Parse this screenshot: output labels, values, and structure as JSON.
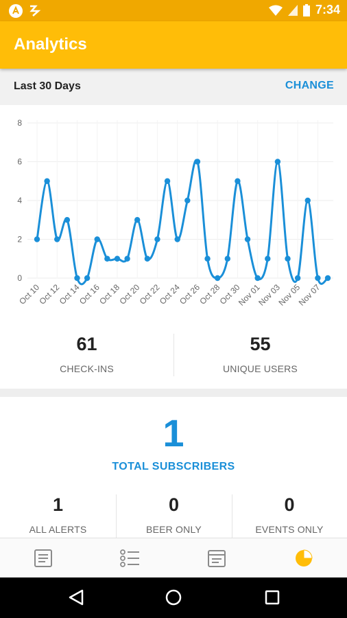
{
  "status_bar": {
    "time": "7:34",
    "icons": [
      "app-logo-icon",
      "notification-icon",
      "wifi-icon",
      "signal-icon",
      "battery-icon"
    ]
  },
  "app_bar": {
    "title": "Analytics",
    "color": "#ffbd08"
  },
  "range": {
    "label": "Last 30 Days",
    "action": "CHANGE"
  },
  "chart_data": {
    "type": "line",
    "categories": [
      "Oct 10",
      "Oct 11",
      "Oct 12",
      "Oct 13",
      "Oct 14",
      "Oct 15",
      "Oct 16",
      "Oct 17",
      "Oct 18",
      "Oct 19",
      "Oct 20",
      "Oct 21",
      "Oct 22",
      "Oct 23",
      "Oct 24",
      "Oct 25",
      "Oct 26",
      "Oct 27",
      "Oct 28",
      "Oct 29",
      "Oct 30",
      "Oct 31",
      "Nov 01",
      "Nov 02",
      "Nov 03",
      "Nov 04",
      "Nov 05",
      "Nov 06",
      "Nov 07",
      "Nov 08"
    ],
    "tick_labels": [
      "Oct 10",
      "Oct 12",
      "Oct 14",
      "Oct 16",
      "Oct 18",
      "Oct 20",
      "Oct 22",
      "Oct 24",
      "Oct 26",
      "Oct 28",
      "Oct 30",
      "Nov 01",
      "Nov 03",
      "Nov 05",
      "Nov 07"
    ],
    "values": [
      2,
      5,
      2,
      3,
      0,
      0,
      2,
      1,
      1,
      1,
      3,
      1,
      2,
      5,
      2,
      4,
      6,
      1,
      0,
      1,
      5,
      2,
      0,
      1,
      6,
      1,
      0,
      4,
      0,
      0
    ],
    "ylim": [
      0,
      8
    ],
    "yticks": [
      0,
      2,
      4,
      6,
      8
    ],
    "grid": true,
    "color": "#1a8fd8"
  },
  "stats": {
    "checkins": {
      "value": "61",
      "label": "CHECK-INS"
    },
    "unique_users": {
      "value": "55",
      "label": "UNIQUE USERS"
    }
  },
  "subscribers": {
    "total": "1",
    "label": "TOTAL SUBSCRIBERS",
    "breakdown": [
      {
        "value": "1",
        "label": "ALL ALERTS"
      },
      {
        "value": "0",
        "label": "BEER ONLY"
      },
      {
        "value": "0",
        "label": "EVENTS ONLY"
      }
    ]
  },
  "bottom_nav": {
    "items": [
      "menu-list-icon",
      "checklist-icon",
      "calendar-icon",
      "analytics-pie-icon"
    ],
    "active_index": 3,
    "active_color": "#ffbd08"
  },
  "system_nav": {
    "items": [
      "back-icon",
      "home-icon",
      "recents-icon"
    ]
  }
}
